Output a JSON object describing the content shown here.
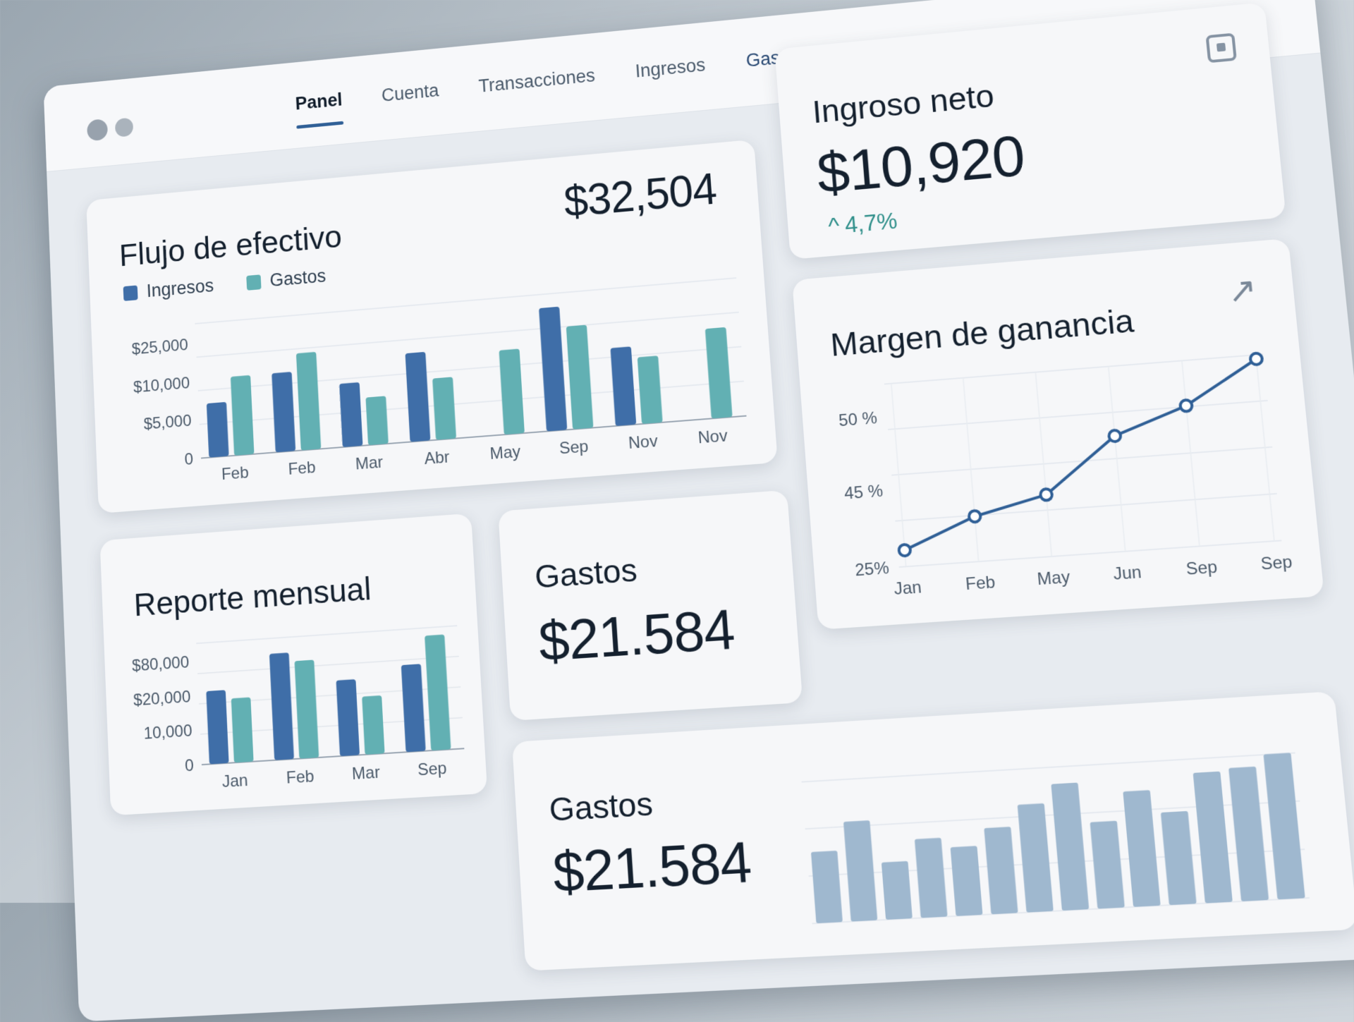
{
  "colors": {
    "ingresos": "#3f6ea8",
    "gastos": "#62b0b3",
    "bars_light": "#9fb8cf",
    "line": "#2f5f96",
    "accent_green": "#2f8f8a"
  },
  "nav": {
    "tabs": [
      "Panel",
      "Cuenta",
      "Transacciones",
      "Ingresos",
      "Gastos"
    ],
    "active": "Panel"
  },
  "cashflow": {
    "title": "Flujo de efectivo",
    "total": "$32,504",
    "legend": [
      "Ingresos",
      "Gastos"
    ],
    "chart_data": {
      "type": "bar",
      "categories": [
        "Feb",
        "Feb",
        "Mar",
        "Abr",
        "May",
        "Sep",
        "Nov",
        "Nov"
      ],
      "y_tick_labels": [
        "0",
        "$5,000",
        "$10,000",
        "$25,000"
      ],
      "series": [
        {
          "name": "Ingresos",
          "values": [
            12000,
            17500,
            14000,
            19500,
            0,
            27000,
            17000,
            0
          ]
        },
        {
          "name": "Gastos",
          "values": [
            17500,
            21500,
            10500,
            13500,
            18500,
            22500,
            14500,
            19500
          ]
        }
      ],
      "ylim": [
        0,
        30000
      ]
    }
  },
  "net_income": {
    "title": "Ingroso neto",
    "value": "$10,920",
    "delta_icon": "chevron-up",
    "delta": "4,7%"
  },
  "margin": {
    "title": "Margen de ganancia",
    "icon": "trend-up-icon",
    "chart_data": {
      "type": "line",
      "categories": [
        "Jan",
        "Feb",
        "May",
        "Jun",
        "Sep",
        "Sep"
      ],
      "y_tick_labels": [
        "25%",
        "45 %",
        "50 %"
      ],
      "values": [
        29,
        36,
        40,
        53,
        59,
        69
      ],
      "ylim": [
        25,
        70
      ]
    }
  },
  "monthly": {
    "title": "Reporte mensual",
    "chart_data": {
      "type": "bar",
      "categories": [
        "Jan",
        "Feb",
        "Mar",
        "Sep"
      ],
      "y_tick_labels": [
        "0",
        "10,000",
        "$20,000",
        "$80,000"
      ],
      "series": [
        {
          "name": "Ingresos",
          "values": [
            66,
            96,
            68,
            78
          ]
        },
        {
          "name": "Gastos",
          "values": [
            58,
            88,
            52,
            103
          ]
        }
      ],
      "ylim": [
        0,
        110
      ]
    }
  },
  "expenses_small": {
    "title": "Gastos",
    "value": "$21.584"
  },
  "expenses_bottom": {
    "title": "Gastos",
    "value": "$21.584",
    "chart_data": {
      "type": "bar",
      "values": [
        50,
        70,
        40,
        55,
        48,
        60,
        75,
        88,
        60,
        80,
        64,
        90,
        92,
        100
      ],
      "ylim": [
        0,
        110
      ]
    }
  }
}
